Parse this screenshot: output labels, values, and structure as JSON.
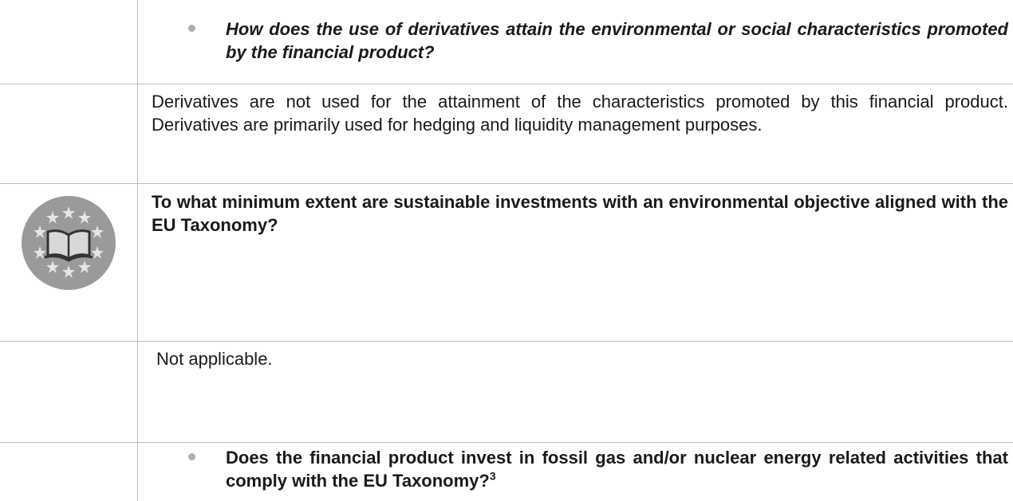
{
  "rows": [
    {
      "text": "How does the use of derivatives attain the environmental or social characteristics promoted by the financial product?"
    },
    {
      "text": "Derivatives are not used for the attainment of the characteristics promoted by this financial product. Derivatives are primarily used for hedging and liquidity management purposes."
    },
    {
      "text": "To what minimum extent are sustainable investments with an environmental objective aligned with the EU Taxonomy?"
    },
    {
      "text": "Not applicable."
    },
    {
      "text": "Does the financial product invest in fossil gas and/or nuclear energy related activities that comply with the EU Taxonomy?",
      "footnote": "3"
    }
  ]
}
